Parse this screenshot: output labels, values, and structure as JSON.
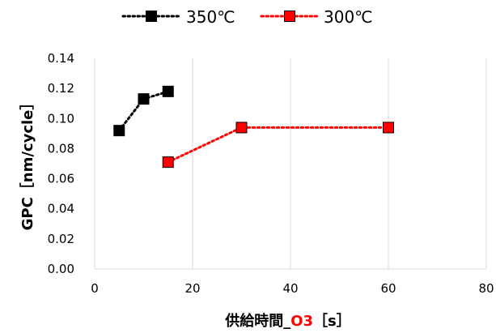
{
  "chart_data": {
    "type": "scatter",
    "xlabel": {
      "prefix": "供給時間_",
      "highlight": "O3",
      "suffix": "［s］",
      "highlight_color": "#ff0000"
    },
    "ylabel": "GPC［nm/cycle］",
    "xlim": [
      0,
      80
    ],
    "ylim": [
      0,
      0.14
    ],
    "xticks": [
      "0",
      "20",
      "40",
      "60",
      "80"
    ],
    "yticks": [
      "0.00",
      "0.02",
      "0.04",
      "0.06",
      "0.08",
      "0.10",
      "0.12",
      "0.14"
    ],
    "grid": "vertical",
    "legend_position": "top",
    "series": [
      {
        "name": "350℃",
        "color": "#000000",
        "line_style": "dotted",
        "points": [
          {
            "x": 5,
            "y": 0.092
          },
          {
            "x": 10,
            "y": 0.113
          },
          {
            "x": 15,
            "y": 0.118
          }
        ]
      },
      {
        "name": "300℃",
        "color": "#ff0000",
        "line_style": "dotted",
        "points": [
          {
            "x": 15,
            "y": 0.071
          },
          {
            "x": 30,
            "y": 0.094
          },
          {
            "x": 60,
            "y": 0.094
          }
        ]
      }
    ]
  }
}
